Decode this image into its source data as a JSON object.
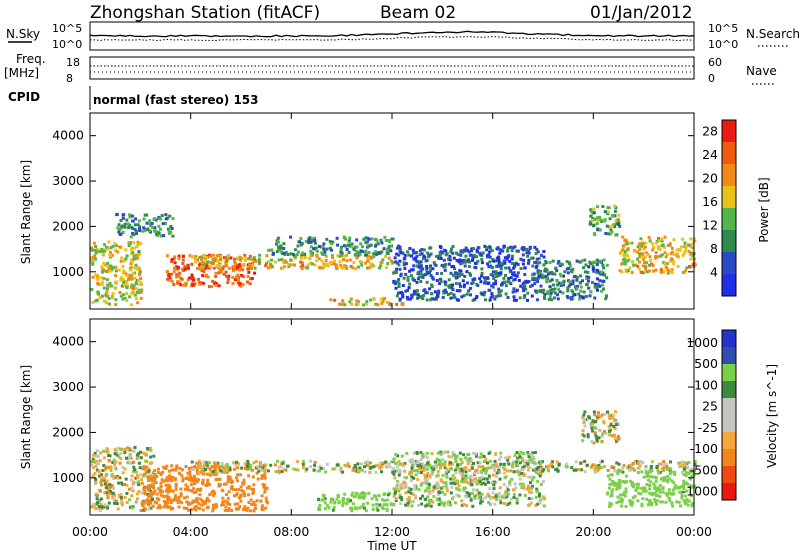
{
  "header": {
    "station": "Zhongshan Station (fitACF)",
    "beam": "Beam 02",
    "date": "01/Jan/2012"
  },
  "strip": {
    "nsky_label": "N.Sky",
    "nsearch_label": "N.Search",
    "noise_ticks_left": [
      "10^5",
      "10^0"
    ],
    "noise_ticks_right": [
      "10^5",
      "10^0"
    ],
    "freq_label": "Freq.",
    "freq_unit": "[MHz]",
    "freq_ticks": [
      "18",
      "8"
    ],
    "nave_label": "Nave",
    "nave_ticks": [
      "60",
      "0"
    ],
    "cpid_label": "CPID",
    "cpid_text": "normal (fast stereo) 153"
  },
  "x_axis": {
    "label": "Time UT",
    "ticks": [
      "00:00",
      "04:00",
      "08:00",
      "12:00",
      "16:00",
      "20:00",
      "00:00"
    ]
  },
  "colors": {
    "power_scale": [
      "#1f2fe6",
      "#2a4bc4",
      "#2f8a4e",
      "#54b54a",
      "#e8c21a",
      "#f08a14",
      "#ef5a10",
      "#e81c10"
    ],
    "velocity_scale": [
      "#e81810",
      "#ef4a12",
      "#f2861a",
      "#f4a63a",
      "#c6c6c0",
      "#c6c6c0",
      "#3e8a3c",
      "#7ad048",
      "#2e4fb0",
      "#2434c8"
    ]
  },
  "chart_data": [
    {
      "type": "heatmap",
      "title": "",
      "quantity": "Power",
      "xlabel": "Time UT",
      "ylabel": "Slant Range [km]",
      "xlim": [
        "00:00",
        "24:00"
      ],
      "ylim": [
        180,
        4500
      ],
      "yticks": [
        1000,
        2000,
        3000,
        4000
      ],
      "colorbar_label": "Power [dB]",
      "colorbar_ticks": [
        4,
        8,
        12,
        16,
        20,
        24,
        28
      ],
      "colorbar_range": [
        0,
        30
      ],
      "features": [
        {
          "time_start": 0.0,
          "time_end": 2.0,
          "range_start": 300,
          "range_end": 1700,
          "power": 16
        },
        {
          "time_start": 1.0,
          "time_end": 3.3,
          "range_start": 1800,
          "range_end": 2300,
          "power": 10
        },
        {
          "time_start": 3.0,
          "time_end": 6.5,
          "range_start": 700,
          "range_end": 1400,
          "power": 24
        },
        {
          "time_start": 4.0,
          "time_end": 12.0,
          "range_start": 1100,
          "range_end": 1400,
          "power": 18
        },
        {
          "time_start": 7.0,
          "time_end": 12.0,
          "range_start": 1400,
          "range_end": 1800,
          "power": 10
        },
        {
          "time_start": 9.5,
          "time_end": 12.5,
          "range_start": 300,
          "range_end": 450,
          "power": 18
        },
        {
          "time_start": 12.0,
          "time_end": 18.0,
          "range_start": 400,
          "range_end": 1600,
          "power": 6
        },
        {
          "time_start": 18.0,
          "time_end": 20.5,
          "range_start": 400,
          "range_end": 1300,
          "power": 8
        },
        {
          "time_start": 19.8,
          "time_end": 21.0,
          "range_start": 1800,
          "range_end": 2500,
          "power": 12
        },
        {
          "time_start": 21.0,
          "time_end": 24.0,
          "range_start": 1000,
          "range_end": 1800,
          "power": 18
        }
      ]
    },
    {
      "type": "heatmap",
      "title": "",
      "quantity": "Velocity",
      "xlabel": "Time UT",
      "ylabel": "Slant Range [km]",
      "xlim": [
        "00:00",
        "24:00"
      ],
      "ylim": [
        180,
        4500
      ],
      "yticks": [
        1000,
        2000,
        3000,
        4000
      ],
      "colorbar_label": "Velocity [m s^-1]",
      "colorbar_ticks": [
        1000,
        500,
        100,
        25,
        -25,
        -100,
        -500,
        -1000
      ],
      "features": [
        {
          "time_start": 0.0,
          "time_end": 2.5,
          "range_start": 300,
          "range_end": 1700,
          "velocity": 0
        },
        {
          "time_start": 2.0,
          "time_end": 7.0,
          "range_start": 300,
          "range_end": 1300,
          "velocity": -300
        },
        {
          "time_start": 4.0,
          "time_end": 24.0,
          "range_start": 1150,
          "range_end": 1400,
          "velocity": 0
        },
        {
          "time_start": 9.0,
          "time_end": 12.0,
          "range_start": 300,
          "range_end": 700,
          "velocity": 200
        },
        {
          "time_start": 12.0,
          "time_end": 18.0,
          "range_start": 400,
          "range_end": 1600,
          "velocity": 50
        },
        {
          "time_start": 19.5,
          "time_end": 21.0,
          "range_start": 1800,
          "range_end": 2500,
          "velocity": 0
        },
        {
          "time_start": 20.5,
          "time_end": 24.0,
          "range_start": 400,
          "range_end": 1200,
          "velocity": 300
        }
      ]
    }
  ]
}
